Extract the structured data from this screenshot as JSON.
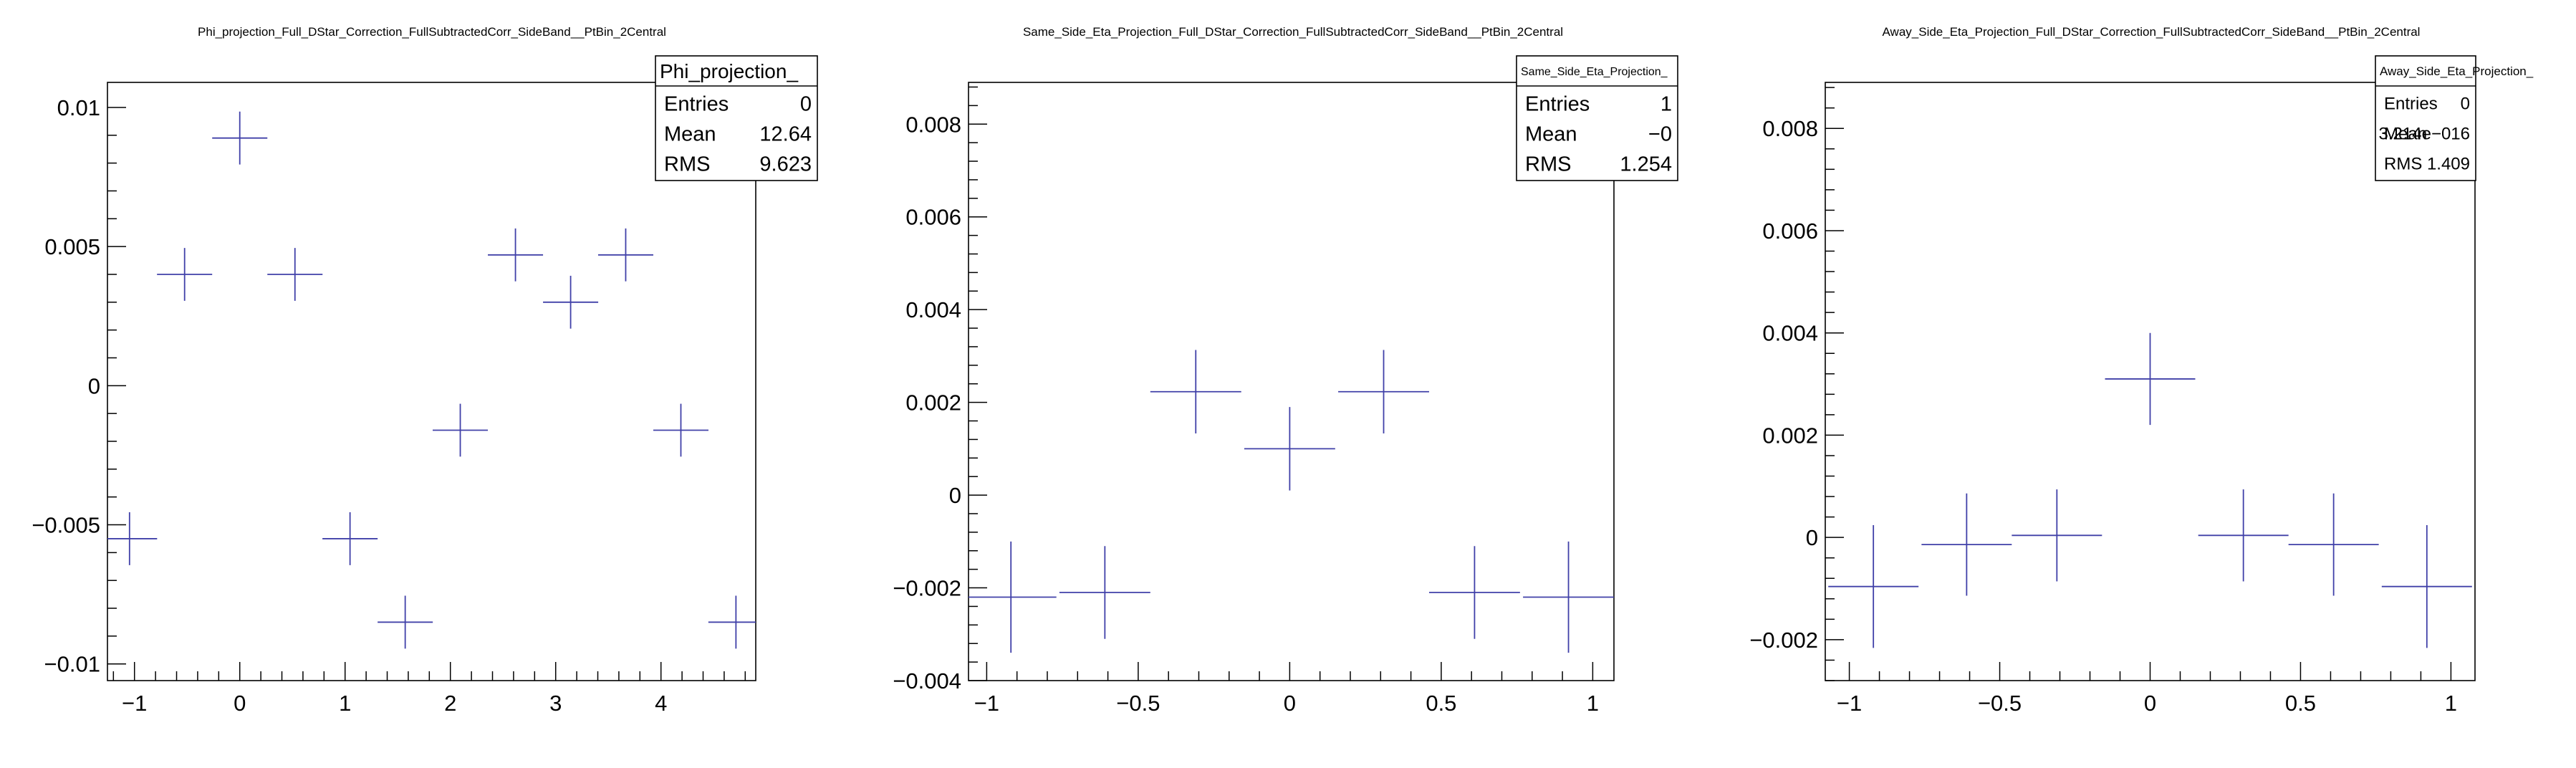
{
  "chart_data": [
    {
      "type": "scatter",
      "title": "Phi_projection_Full_DStar_Correction_FullSubtractedCorr_SideBand__PtBin_2Central",
      "xlabel": "",
      "ylabel": "",
      "xlim": [
        -1.2566,
        4.9
      ],
      "ylim": [
        -0.0106,
        0.0109
      ],
      "xticks": [
        -1,
        0,
        1,
        2,
        3,
        4
      ],
      "xtick_labels": [
        "−1",
        "0",
        "1",
        "2",
        "3",
        "4"
      ],
      "yticks": [
        -0.01,
        -0.005,
        0,
        0.005,
        0.01
      ],
      "ytick_labels": [
        "−0.01",
        "−0.005",
        "0",
        "0.005",
        "0.01"
      ],
      "points": [
        {
          "x": -1.047,
          "y": -0.0055,
          "xerr": 0.262,
          "yerr": 0.00095
        },
        {
          "x": -0.524,
          "y": 0.004,
          "xerr": 0.262,
          "yerr": 0.00095
        },
        {
          "x": 0.0,
          "y": 0.0089,
          "xerr": 0.262,
          "yerr": 0.00095
        },
        {
          "x": 0.524,
          "y": 0.004,
          "xerr": 0.262,
          "yerr": 0.00095
        },
        {
          "x": 1.047,
          "y": -0.0055,
          "xerr": 0.262,
          "yerr": 0.00095
        },
        {
          "x": 1.571,
          "y": -0.0085,
          "xerr": 0.262,
          "yerr": 0.00095
        },
        {
          "x": 2.094,
          "y": -0.0016,
          "xerr": 0.262,
          "yerr": 0.00095
        },
        {
          "x": 2.618,
          "y": 0.0047,
          "xerr": 0.262,
          "yerr": 0.00095
        },
        {
          "x": 3.142,
          "y": 0.003,
          "xerr": 0.262,
          "yerr": 0.00095
        },
        {
          "x": 3.665,
          "y": 0.0047,
          "xerr": 0.262,
          "yerr": 0.00095
        },
        {
          "x": 4.189,
          "y": -0.0016,
          "xerr": 0.262,
          "yerr": 0.00095
        },
        {
          "x": 4.712,
          "y": -0.0085,
          "xerr": 0.262,
          "yerr": 0.00095
        }
      ],
      "stats": {
        "name": "Phi_projection_",
        "rows": [
          [
            "Entries",
            "0"
          ],
          [
            "Mean",
            "12.64"
          ],
          [
            "RMS",
            "9.623"
          ]
        ]
      },
      "color": "#4040a8",
      "grid": false
    },
    {
      "type": "scatter",
      "title": "Same_Side_Eta_Projection_Full_DStar_Correction_FullSubtractedCorr_SideBand__PtBin_2Central",
      "xlabel": "",
      "ylabel": "",
      "xlim": [
        -1.06,
        1.07
      ],
      "ylim": [
        -0.004,
        0.0089
      ],
      "xticks": [
        -1,
        -0.5,
        0,
        0.5,
        1
      ],
      "xtick_labels": [
        "−1",
        "−0.5",
        "0",
        "0.5",
        "1"
      ],
      "yticks": [
        -0.004,
        -0.002,
        0,
        0.002,
        0.004,
        0.006,
        0.008
      ],
      "ytick_labels": [
        "−0.004",
        "−0.002",
        "0",
        "0.002",
        "0.004",
        "0.006",
        "0.008"
      ],
      "points": [
        {
          "x": -0.92,
          "y": -0.0022,
          "xerr": 0.15,
          "yerr": 0.0012
        },
        {
          "x": -0.61,
          "y": -0.0021,
          "xerr": 0.15,
          "yerr": 0.001
        },
        {
          "x": -0.31,
          "y": 0.00223,
          "xerr": 0.15,
          "yerr": 0.0009
        },
        {
          "x": 0.0,
          "y": 0.001,
          "xerr": 0.15,
          "yerr": 0.0009
        },
        {
          "x": 0.31,
          "y": 0.00223,
          "xerr": 0.15,
          "yerr": 0.0009
        },
        {
          "x": 0.61,
          "y": -0.0021,
          "xerr": 0.15,
          "yerr": 0.001
        },
        {
          "x": 0.92,
          "y": -0.0022,
          "xerr": 0.15,
          "yerr": 0.0012
        }
      ],
      "stats": {
        "name": "Same_Side_Eta_Projection_",
        "rows": [
          [
            "Entries",
            "1"
          ],
          [
            "Mean",
            "−0"
          ],
          [
            "RMS",
            "1.254"
          ]
        ]
      },
      "color": "#4040a8",
      "grid": false
    },
    {
      "type": "scatter",
      "title": "Away_Side_Eta_Projection_Full_DStar_Correction_FullSubtractedCorr_SideBand__PtBin_2Central",
      "xlabel": "",
      "ylabel": "",
      "xlim": [
        -1.08,
        1.08
      ],
      "ylim": [
        -0.0028,
        0.0089
      ],
      "xticks": [
        -1,
        -0.5,
        0,
        0.5,
        1
      ],
      "xtick_labels": [
        "−1",
        "−0.5",
        "0",
        "0.5",
        "1"
      ],
      "yticks": [
        -0.002,
        0,
        0.002,
        0.004,
        0.006,
        0.008
      ],
      "ytick_labels": [
        "−0.002",
        "0",
        "0.002",
        "0.004",
        "0.006",
        "0.008"
      ],
      "points": [
        {
          "x": -0.92,
          "y": -0.00096,
          "xerr": 0.15,
          "yerr": 0.0012
        },
        {
          "x": -0.61,
          "y": -0.00014,
          "xerr": 0.15,
          "yerr": 0.001
        },
        {
          "x": -0.31,
          "y": 4e-05,
          "xerr": 0.15,
          "yerr": 0.0009
        },
        {
          "x": 0.0,
          "y": 0.0031,
          "xerr": 0.15,
          "yerr": 0.0009
        },
        {
          "x": 0.31,
          "y": 4e-05,
          "xerr": 0.15,
          "yerr": 0.0009
        },
        {
          "x": 0.61,
          "y": -0.00014,
          "xerr": 0.15,
          "yerr": 0.001
        },
        {
          "x": 0.92,
          "y": -0.00096,
          "xerr": 0.15,
          "yerr": 0.0012
        }
      ],
      "stats": {
        "name": "Away_Side_Eta_Projection_",
        "rows": [
          [
            "Entries",
            "0"
          ],
          [
            "Mean",
            "3.214e−016"
          ],
          [
            "RMS",
            "1.409"
          ]
        ]
      },
      "color": "#4040a8",
      "grid": false
    }
  ]
}
